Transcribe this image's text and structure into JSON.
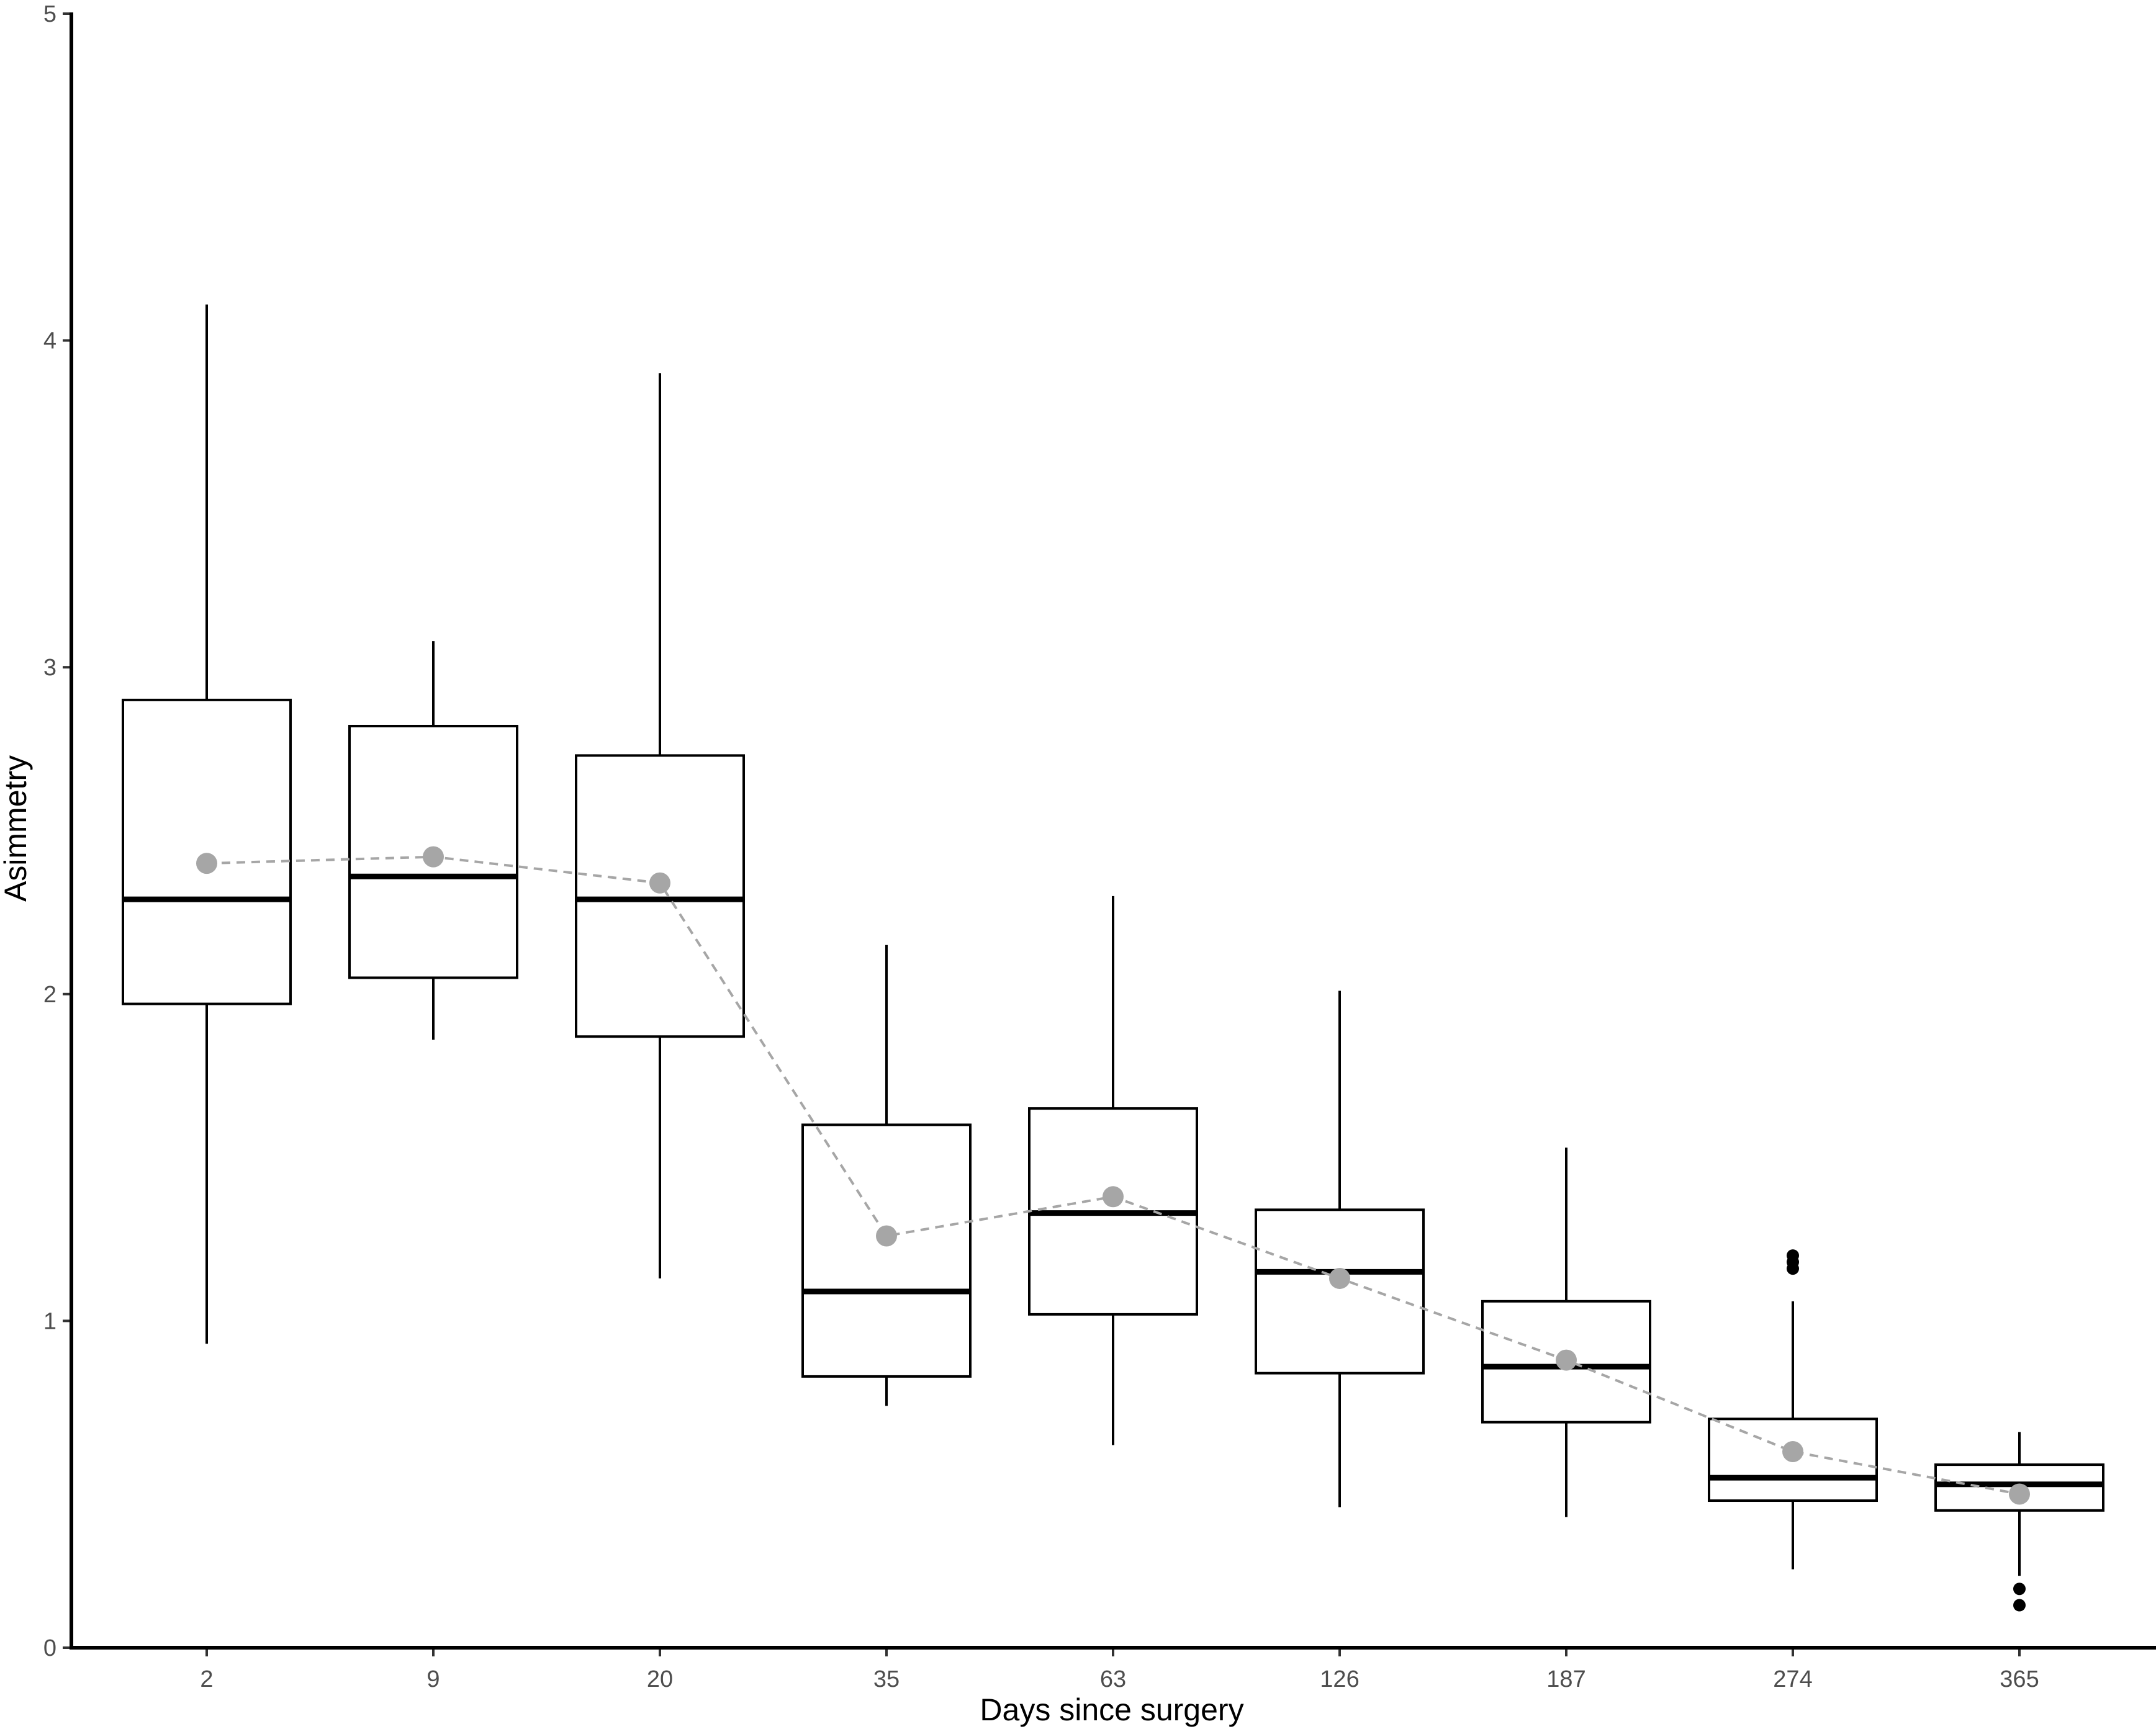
{
  "chart_data": {
    "type": "box",
    "xlabel": "Days since surgery",
    "ylabel": "Asimmetry",
    "ylim": [
      0,
      5
    ],
    "yticks": [
      "0",
      "1",
      "2",
      "3",
      "4",
      "5"
    ],
    "grid": false,
    "categories": [
      "2",
      "9",
      "20",
      "35",
      "63",
      "126",
      "187",
      "274",
      "365"
    ],
    "boxes": [
      {
        "category": "2",
        "whisker_low": 0.93,
        "q1": 1.97,
        "median": 2.29,
        "q3": 2.9,
        "whisker_high": 4.11,
        "outliers": []
      },
      {
        "category": "9",
        "whisker_low": 1.86,
        "q1": 2.05,
        "median": 2.36,
        "q3": 2.82,
        "whisker_high": 3.08,
        "outliers": []
      },
      {
        "category": "20",
        "whisker_low": 1.13,
        "q1": 1.87,
        "median": 2.29,
        "q3": 2.73,
        "whisker_high": 3.9,
        "outliers": []
      },
      {
        "category": "35",
        "whisker_low": 0.74,
        "q1": 0.83,
        "median": 1.09,
        "q3": 1.6,
        "whisker_high": 2.15,
        "outliers": []
      },
      {
        "category": "63",
        "whisker_low": 0.62,
        "q1": 1.02,
        "median": 1.33,
        "q3": 1.65,
        "whisker_high": 2.3,
        "outliers": []
      },
      {
        "category": "126",
        "whisker_low": 0.43,
        "q1": 0.84,
        "median": 1.15,
        "q3": 1.34,
        "whisker_high": 2.01,
        "outliers": []
      },
      {
        "category": "187",
        "whisker_low": 0.4,
        "q1": 0.69,
        "median": 0.86,
        "q3": 1.06,
        "whisker_high": 1.53,
        "outliers": []
      },
      {
        "category": "274",
        "whisker_low": 0.24,
        "q1": 0.45,
        "median": 0.52,
        "q3": 0.7,
        "whisker_high": 1.06,
        "outliers": [
          1.16,
          1.18,
          1.2
        ]
      },
      {
        "category": "365",
        "whisker_low": 0.22,
        "q1": 0.42,
        "median": 0.5,
        "q3": 0.56,
        "whisker_high": 0.66,
        "outliers": [
          0.13,
          0.18
        ]
      }
    ],
    "mean_series": {
      "values": [
        2.4,
        2.42,
        2.34,
        1.26,
        1.38,
        1.13,
        0.88,
        0.6,
        0.47
      ],
      "color": "#a6a6a6",
      "line_style": "dashed"
    },
    "box_color": "#000000"
  }
}
